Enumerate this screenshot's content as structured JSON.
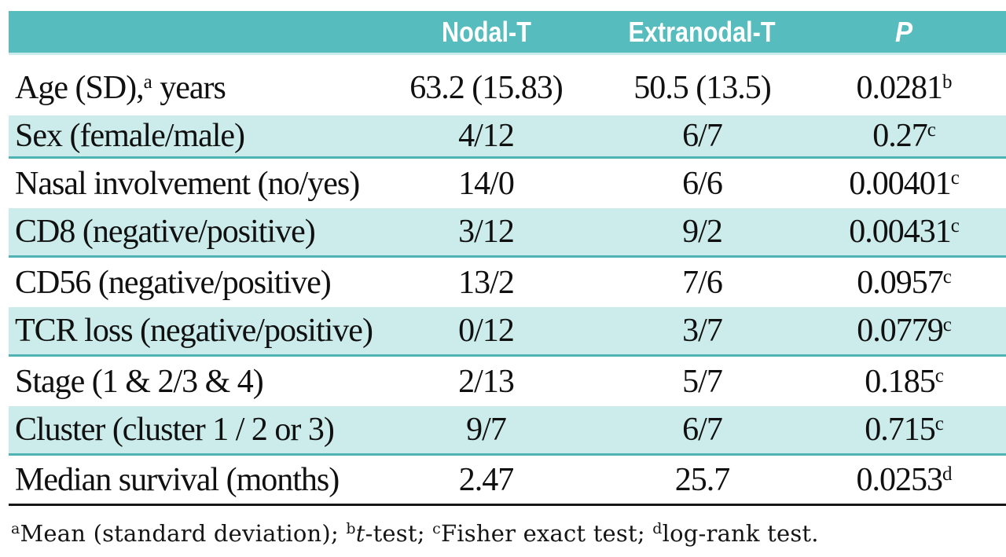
{
  "colors": {
    "header_teal": "#57bcbd",
    "row_tint": "#cbeceb",
    "row_separator": "#4fb3b4",
    "bottom_rule": "#161616",
    "header_text": "#ffffff",
    "body_text": "#101010"
  },
  "table": {
    "header": {
      "col0": "",
      "col1": "Nodal-T",
      "col2": "Extranodal-T",
      "col3": "P"
    },
    "rows": [
      {
        "label": "Age (SD),",
        "label_sup": "a",
        "label_rest": " years",
        "nodal": "63.2 (15.83)",
        "extranodal": "50.5 (13.5)",
        "p": "0.0281",
        "p_sup": "b"
      },
      {
        "label": "Sex (female/male)",
        "label_sup": "",
        "label_rest": "",
        "nodal": "4/12",
        "extranodal": "6/7",
        "p": "0.27",
        "p_sup": "c"
      },
      {
        "label": "Nasal involvement (no/yes)",
        "label_sup": "",
        "label_rest": "",
        "nodal": "14/0",
        "extranodal": "6/6",
        "p": "0.00401",
        "p_sup": "c"
      },
      {
        "label": "CD8 (negative/positive)",
        "label_sup": "",
        "label_rest": "",
        "nodal": "3/12",
        "extranodal": "9/2",
        "p": "0.00431",
        "p_sup": "c"
      },
      {
        "label": "CD56 (negative/positive)",
        "label_sup": "",
        "label_rest": "",
        "nodal": "13/2",
        "extranodal": "7/6",
        "p": "0.0957",
        "p_sup": "c"
      },
      {
        "label": "TCR loss (negative/positive)",
        "label_sup": "",
        "label_rest": "",
        "nodal": "0/12",
        "extranodal": "3/7",
        "p": "0.0779",
        "p_sup": "c"
      },
      {
        "label": "Stage (1 & 2/3 & 4)",
        "label_sup": "",
        "label_rest": "",
        "nodal": "2/13",
        "extranodal": "5/7",
        "p": "0.185",
        "p_sup": "c"
      },
      {
        "label": "Cluster (cluster 1 / 2 or 3)",
        "label_sup": "",
        "label_rest": "",
        "nodal": "9/7",
        "extranodal": "6/7",
        "p": "0.715",
        "p_sup": "c"
      },
      {
        "label": "Median survival (months)",
        "label_sup": "",
        "label_rest": "",
        "nodal": "2.47",
        "extranodal": "25.7",
        "p": "0.0253",
        "p_sup": "d"
      }
    ],
    "footnote_parts": [
      {
        "sup": "a",
        "italic": "",
        "text": "Mean (standard deviation); "
      },
      {
        "sup": "b",
        "italic": "t",
        "text": "-test; "
      },
      {
        "sup": "c",
        "italic": "",
        "text": "Fisher exact test; "
      },
      {
        "sup": "d",
        "italic": "",
        "text": "log-rank test."
      }
    ]
  }
}
